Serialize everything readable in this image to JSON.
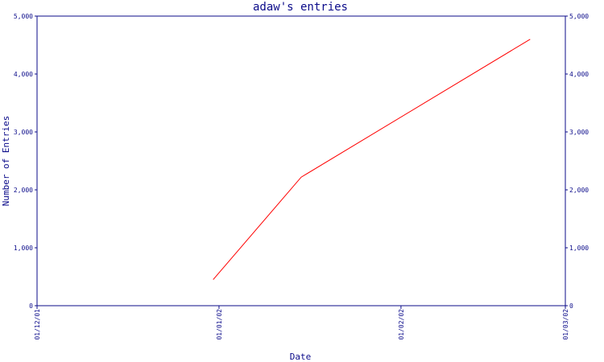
{
  "chart_data": {
    "type": "line",
    "title": "adaw's entries",
    "xlabel": "Date",
    "ylabel": "Number of Entries",
    "x_ticks": [
      "01/12/01",
      "01/01/02",
      "01/02/02",
      "01/03/02"
    ],
    "y_ticks": [
      "0",
      "1,000",
      "2,000",
      "3,000",
      "4,000",
      "5,000"
    ],
    "ylim": [
      0,
      5000
    ],
    "xlim": [
      "2001-12-01",
      "2002-03-01"
    ],
    "grid": false,
    "series": [
      {
        "color": "#ff0000",
        "points": [
          {
            "x": "2001-12-31",
            "y": 450
          },
          {
            "x": "2002-01-15",
            "y": 2220
          },
          {
            "x": "2002-02-23",
            "y": 4600
          }
        ]
      }
    ]
  }
}
